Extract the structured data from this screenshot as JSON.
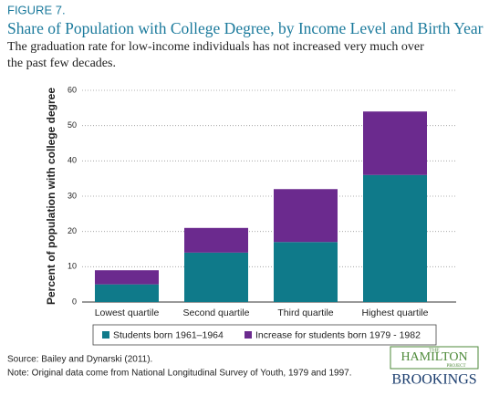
{
  "chart_data": {
    "type": "stacked_bar",
    "figure_label": "FIGURE 7.",
    "title": "Share of Population with College Degree, by Income Level and Birth Year",
    "subtitle": "The graduation rate for low-income individuals has not increased very much over the past few decades.",
    "y_label": "Percent of population with college degree",
    "categories": [
      "Lowest quartile",
      "Second quartile",
      "Third quartile",
      "Highest quartile"
    ],
    "series": [
      {
        "name": "Students born 1961–1964",
        "color": "#0f7a8a",
        "values": [
          5,
          14,
          17,
          36
        ]
      },
      {
        "name": "Increase for students born 1979 - 1982",
        "color": "#6b2a8e",
        "values": [
          4,
          7,
          15,
          18
        ]
      }
    ],
    "ylim": [
      0,
      60
    ],
    "yticks": [
      0,
      10,
      20,
      30,
      40,
      50,
      60
    ],
    "grid": true,
    "source": "Source: Bailey and Dynarski (2011).",
    "note": "Note: Original data come from National Longitudinal Survey of Youth, 1979 and 1997.",
    "logo_top": "THE",
    "logo_main": "HAMILTON",
    "logo_sub": "PROJECT",
    "logo_org": "BROOKINGS"
  }
}
